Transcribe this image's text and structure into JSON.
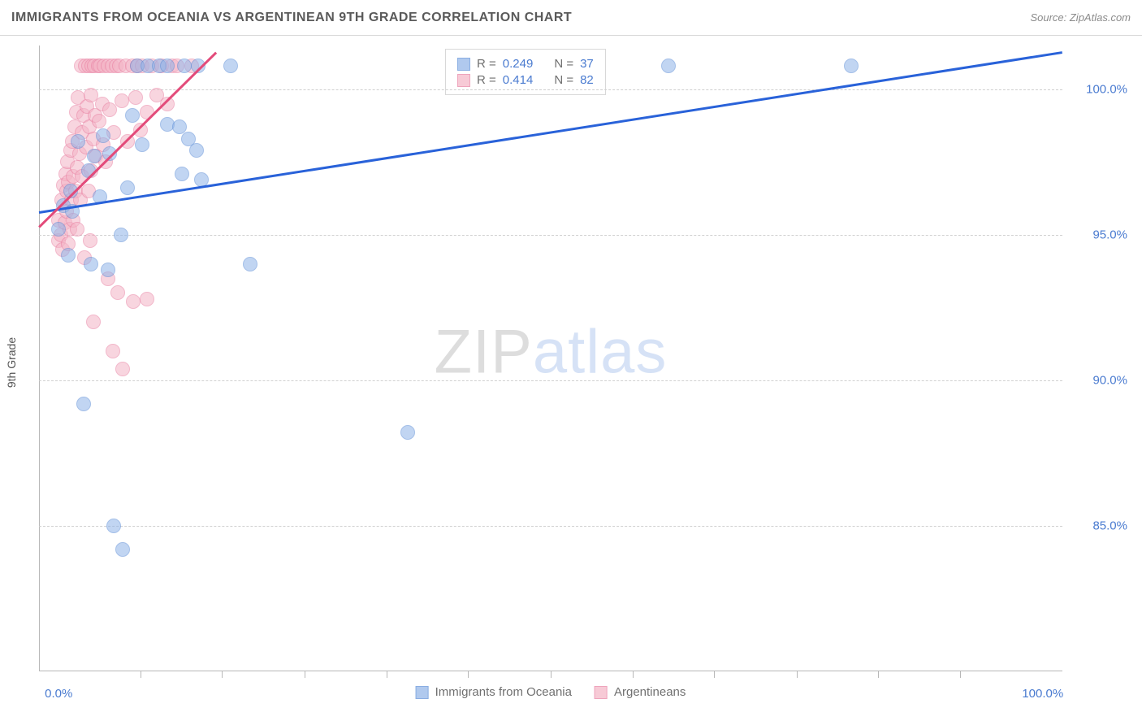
{
  "title": "IMMIGRANTS FROM OCEANIA VS ARGENTINEAN 9TH GRADE CORRELATION CHART",
  "source": "Source: ZipAtlas.com",
  "watermark": {
    "part1": "ZIP",
    "part2": "atlas"
  },
  "ylabel": "9th Grade",
  "chart": {
    "type": "scatter",
    "background_color": "#ffffff",
    "grid_color": "#d0d0d0",
    "axis_color": "#b8b8b8",
    "text_color": "#555555",
    "tick_label_color": "#4a7bd0",
    "xlim": [
      -2,
      102
    ],
    "ylim": [
      80,
      101.5
    ],
    "x_ticks": [
      0,
      100
    ],
    "x_tick_labels": [
      "0.0%",
      "100.0%"
    ],
    "x_minor_ticks": [
      8.3,
      16.6,
      25,
      33.3,
      41.6,
      50,
      58.3,
      66.6,
      75,
      83.3,
      91.6
    ],
    "y_ticks": [
      85,
      90,
      95,
      100
    ],
    "y_tick_labels": [
      "85.0%",
      "90.0%",
      "95.0%",
      "100.0%"
    ],
    "marker_radius": 9,
    "marker_opacity": 0.55,
    "series": [
      {
        "name": "Immigrants from Oceania",
        "color_fill": "#8fb3e8",
        "color_stroke": "#5a8cd6",
        "trend": {
          "x1": -2,
          "y1": 95.8,
          "x2": 102,
          "y2": 101.3,
          "color": "#2962d9",
          "width": 2.5
        },
        "legend_top": {
          "R_label": "R =",
          "R": "0.249",
          "N_label": "N =",
          "N": "37"
        },
        "points": [
          [
            0,
            95.2
          ],
          [
            0.5,
            96.0
          ],
          [
            1.0,
            94.3
          ],
          [
            1.2,
            96.5
          ],
          [
            1.4,
            95.8
          ],
          [
            2.0,
            98.2
          ],
          [
            2.5,
            89.2
          ],
          [
            3.0,
            97.2
          ],
          [
            3.3,
            94.0
          ],
          [
            3.6,
            97.7
          ],
          [
            4.2,
            96.3
          ],
          [
            4.5,
            98.4
          ],
          [
            5.0,
            93.8
          ],
          [
            5.2,
            97.8
          ],
          [
            5.6,
            85.0
          ],
          [
            6.3,
            95.0
          ],
          [
            6.5,
            84.2
          ],
          [
            7.0,
            96.6
          ],
          [
            7.5,
            99.1
          ],
          [
            8.0,
            100.8
          ],
          [
            8.5,
            98.1
          ],
          [
            9.1,
            100.8
          ],
          [
            10.2,
            100.8
          ],
          [
            11.0,
            100.8
          ],
          [
            11.0,
            98.8
          ],
          [
            12.3,
            98.7
          ],
          [
            12.5,
            97.1
          ],
          [
            12.8,
            100.8
          ],
          [
            13.2,
            98.3
          ],
          [
            14.0,
            97.9
          ],
          [
            14.2,
            100.8
          ],
          [
            14.5,
            96.9
          ],
          [
            17.5,
            100.8
          ],
          [
            19.5,
            94.0
          ],
          [
            35.5,
            88.2
          ],
          [
            62.0,
            100.8
          ],
          [
            80.5,
            100.8
          ]
        ]
      },
      {
        "name": "Argentineans",
        "color_fill": "#f4b4c6",
        "color_stroke": "#e87ea0",
        "trend": {
          "x1": -2,
          "y1": 95.3,
          "x2": 16,
          "y2": 101.3,
          "color": "#e34b7a",
          "width": 2.5
        },
        "legend_top": {
          "R_label": "R =",
          "R": "0.414",
          "N_label": "N =",
          "N": "82"
        },
        "points": [
          [
            0,
            94.8
          ],
          [
            0,
            95.5
          ],
          [
            0.2,
            95.0
          ],
          [
            0.3,
            96.2
          ],
          [
            0.4,
            94.5
          ],
          [
            0.5,
            96.7
          ],
          [
            0.6,
            95.4
          ],
          [
            0.7,
            97.1
          ],
          [
            0.8,
            95.8
          ],
          [
            0.8,
            96.5
          ],
          [
            0.9,
            97.5
          ],
          [
            1.0,
            94.7
          ],
          [
            1.0,
            96.8
          ],
          [
            1.1,
            95.2
          ],
          [
            1.2,
            97.9
          ],
          [
            1.3,
            96.2
          ],
          [
            1.4,
            98.2
          ],
          [
            1.5,
            95.5
          ],
          [
            1.5,
            97.0
          ],
          [
            1.6,
            98.7
          ],
          [
            1.7,
            96.5
          ],
          [
            1.8,
            99.2
          ],
          [
            1.9,
            97.3
          ],
          [
            1.9,
            95.2
          ],
          [
            2.0,
            99.7
          ],
          [
            2.1,
            97.8
          ],
          [
            2.2,
            96.2
          ],
          [
            2.3,
            100.8
          ],
          [
            2.4,
            98.5
          ],
          [
            2.4,
            97.0
          ],
          [
            2.5,
            99.1
          ],
          [
            2.6,
            94.2
          ],
          [
            2.7,
            100.8
          ],
          [
            2.8,
            98.0
          ],
          [
            2.9,
            99.4
          ],
          [
            3.0,
            96.5
          ],
          [
            3.0,
            100.8
          ],
          [
            3.1,
            98.7
          ],
          [
            3.2,
            94.8
          ],
          [
            3.3,
            99.8
          ],
          [
            3.3,
            97.2
          ],
          [
            3.4,
            100.8
          ],
          [
            3.5,
            98.3
          ],
          [
            3.5,
            92.0
          ],
          [
            3.6,
            100.8
          ],
          [
            3.7,
            99.1
          ],
          [
            3.8,
            97.7
          ],
          [
            4.0,
            100.8
          ],
          [
            4.1,
            98.9
          ],
          [
            4.2,
            100.8
          ],
          [
            4.4,
            99.5
          ],
          [
            4.5,
            98.1
          ],
          [
            4.6,
            100.8
          ],
          [
            4.8,
            97.5
          ],
          [
            5.0,
            93.5
          ],
          [
            5.0,
            100.8
          ],
          [
            5.2,
            99.3
          ],
          [
            5.4,
            100.8
          ],
          [
            5.5,
            91.0
          ],
          [
            5.6,
            98.5
          ],
          [
            5.8,
            100.8
          ],
          [
            6.0,
            93.0
          ],
          [
            6.2,
            100.8
          ],
          [
            6.4,
            99.6
          ],
          [
            6.5,
            90.4
          ],
          [
            6.8,
            100.8
          ],
          [
            7.0,
            98.2
          ],
          [
            7.5,
            100.8
          ],
          [
            7.6,
            92.7
          ],
          [
            7.8,
            99.7
          ],
          [
            8.0,
            100.8
          ],
          [
            8.3,
            98.6
          ],
          [
            8.5,
            100.8
          ],
          [
            9.0,
            99.2
          ],
          [
            9.0,
            92.8
          ],
          [
            9.5,
            100.8
          ],
          [
            10.0,
            99.8
          ],
          [
            10.5,
            100.8
          ],
          [
            11.0,
            99.5
          ],
          [
            11.5,
            100.8
          ],
          [
            12.0,
            100.8
          ],
          [
            13.5,
            100.8
          ]
        ]
      }
    ]
  }
}
